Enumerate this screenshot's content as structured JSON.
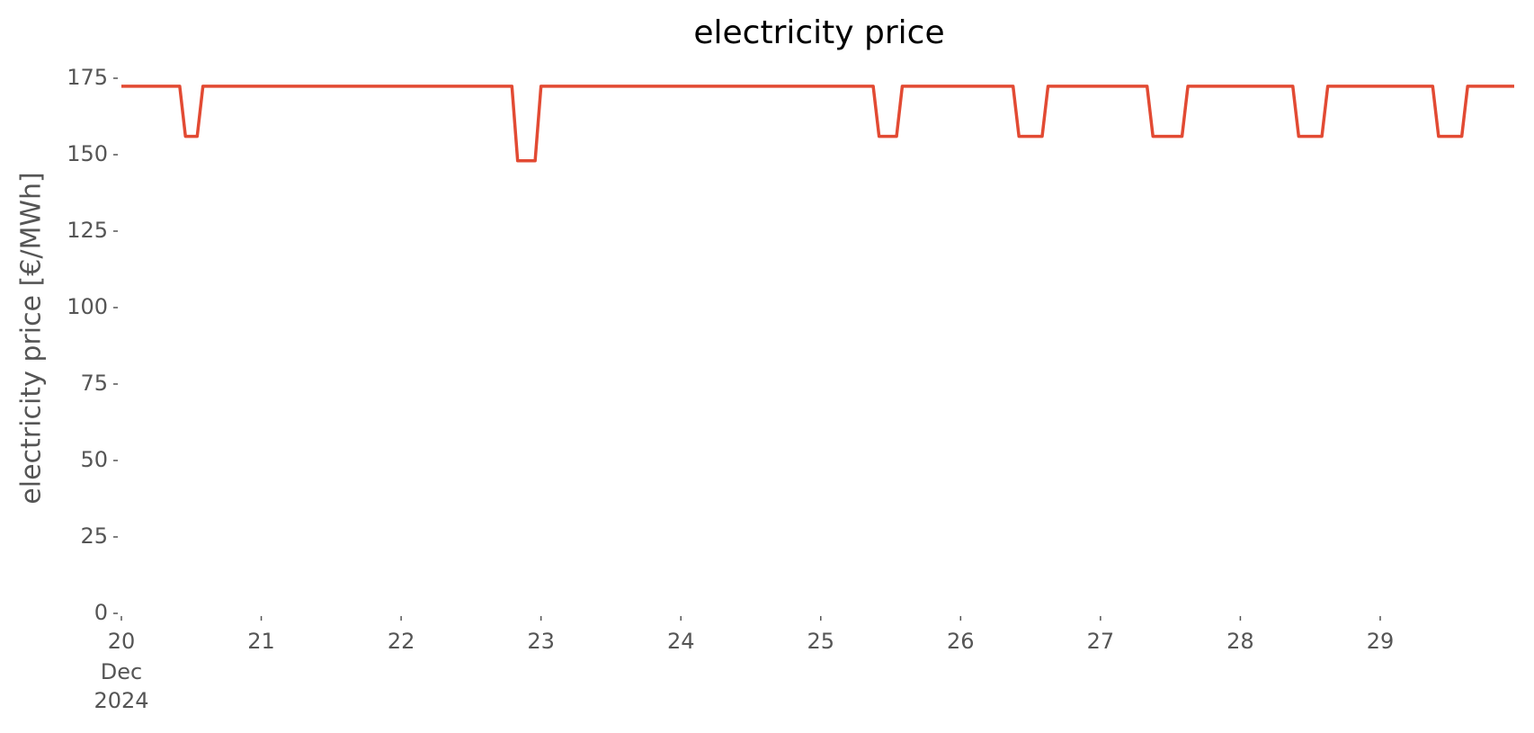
{
  "chart_data": {
    "type": "line",
    "title": "electricity price",
    "ylabel": "electricity price [€/MWh]",
    "x": [
      20.0,
      20.417,
      20.458,
      20.542,
      20.583,
      22.792,
      22.833,
      22.958,
      23.0,
      25.375,
      25.417,
      25.542,
      25.583,
      26.375,
      26.417,
      26.583,
      26.625,
      27.333,
      27.375,
      27.583,
      27.625,
      28.375,
      28.417,
      28.583,
      28.625,
      29.375,
      29.417,
      29.583,
      29.625,
      29.958
    ],
    "series": [
      {
        "color": "#e24a33",
        "values": [
          172.4,
          172.4,
          156,
          156,
          172.4,
          172.4,
          148,
          148,
          172.4,
          172.4,
          156,
          156,
          172.4,
          172.4,
          156,
          156,
          172.4,
          172.4,
          156,
          156,
          172.4,
          172.4,
          156,
          156,
          172.4,
          172.4,
          156,
          156,
          172.4,
          172.4
        ]
      }
    ],
    "xlim": [
      20,
      29.958
    ],
    "xticks": [
      20,
      21,
      22,
      23,
      24,
      25,
      26,
      27,
      28,
      29
    ],
    "xtick_sublabels": [
      "Dec",
      "2024"
    ],
    "ylim": [
      0,
      175
    ],
    "yticks": [
      0,
      25,
      50,
      75,
      100,
      125,
      150,
      175
    ],
    "grid": false
  }
}
